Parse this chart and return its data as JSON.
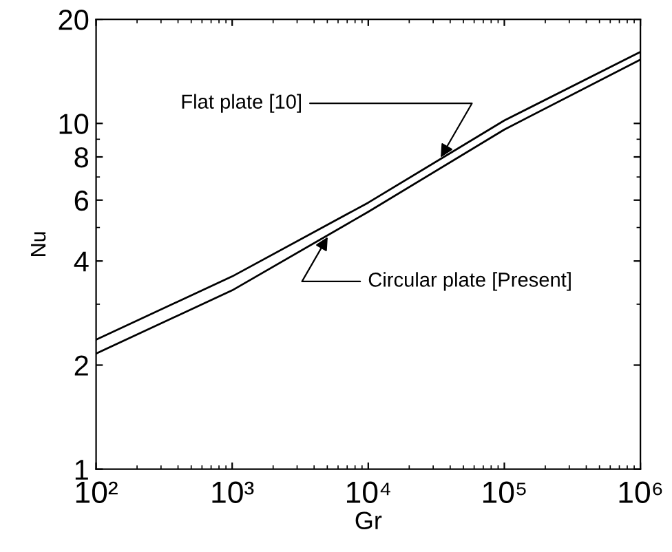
{
  "chart_data": {
    "type": "line",
    "xlabel": "Gr",
    "ylabel": "Nu",
    "log": "xy",
    "grid": false,
    "marker": "none",
    "line_style": "solid",
    "xlim": [
      100,
      1000000
    ],
    "ylim": [
      1,
      20
    ],
    "xticks": [
      {
        "value": 100,
        "label": "10²"
      },
      {
        "value": 1000,
        "label": "10³"
      },
      {
        "value": 10000,
        "label": "10⁴"
      },
      {
        "value": 100000,
        "label": "10⁵"
      },
      {
        "value": 1000000,
        "label": "10⁶"
      }
    ],
    "yticks": [
      1,
      2,
      4,
      6,
      8,
      10,
      20
    ],
    "x": [
      100,
      1000,
      10000,
      100000,
      1000000
    ],
    "series": [
      {
        "color": "#000000",
        "values": [
          2.37,
          3.61,
          5.9,
          10.2,
          16.1
        ]
      },
      {
        "color": "#000000",
        "values": [
          2.16,
          3.29,
          5.55,
          9.6,
          15.3
        ]
      }
    ],
    "annotations": [
      {
        "text": "Flat plate [10]",
        "x": 33000,
        "y": 7.8
      },
      {
        "text": "Circular plate [Present]",
        "x": 5200,
        "y": 4.8
      }
    ]
  }
}
